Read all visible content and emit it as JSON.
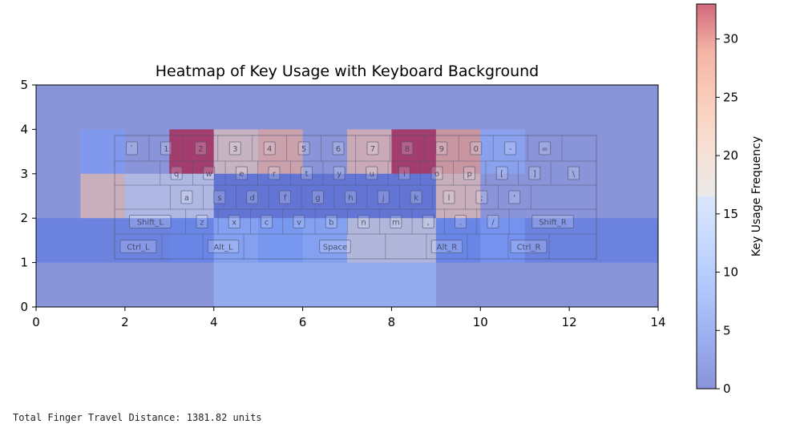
{
  "chart_data": {
    "type": "heatmap",
    "title": "Heatmap of Key Usage with Keyboard Background",
    "xlim": [
      0,
      14
    ],
    "ylim": [
      0,
      5
    ],
    "x_ticks": [
      0,
      2,
      4,
      6,
      8,
      10,
      12,
      14
    ],
    "y_ticks": [
      0,
      1,
      2,
      3,
      4,
      5
    ],
    "grid": false,
    "colormap": "coolwarm",
    "colorbar": {
      "label": "Key Usage Frequency",
      "min": 0,
      "max": 33,
      "ticks": [
        0,
        5,
        10,
        15,
        20,
        25,
        30
      ]
    },
    "background_value": 0,
    "cells": [
      {
        "x": [
          1,
          2
        ],
        "y": [
          3,
          4
        ],
        "value": 8
      },
      {
        "x": [
          3,
          4
        ],
        "y": [
          3,
          4
        ],
        "value": 33
      },
      {
        "x": [
          4,
          5
        ],
        "y": [
          3,
          4
        ],
        "value": 21
      },
      {
        "x": [
          5,
          6
        ],
        "y": [
          3,
          4
        ],
        "value": 25
      },
      {
        "x": [
          7,
          8
        ],
        "y": [
          3,
          4
        ],
        "value": 23
      },
      {
        "x": [
          8,
          9
        ],
        "y": [
          3,
          4
        ],
        "value": 33
      },
      {
        "x": [
          9,
          10
        ],
        "y": [
          3,
          4
        ],
        "value": 27
      },
      {
        "x": [
          10,
          11
        ],
        "y": [
          3,
          4
        ],
        "value": 10
      },
      {
        "x": [
          1,
          2
        ],
        "y": [
          2,
          3
        ],
        "value": 22
      },
      {
        "x": [
          2,
          3
        ],
        "y": [
          2,
          3
        ],
        "value": 15
      },
      {
        "x": [
          3,
          4
        ],
        "y": [
          2,
          3
        ],
        "value": 15
      },
      {
        "x": [
          4,
          5
        ],
        "y": [
          2,
          3
        ],
        "value": 2
      },
      {
        "x": [
          5,
          6
        ],
        "y": [
          2,
          3
        ],
        "value": 2
      },
      {
        "x": [
          6,
          7
        ],
        "y": [
          2,
          3
        ],
        "value": 2
      },
      {
        "x": [
          7,
          8
        ],
        "y": [
          2,
          3
        ],
        "value": 2
      },
      {
        "x": [
          8,
          9
        ],
        "y": [
          2,
          3
        ],
        "value": 2
      },
      {
        "x": [
          9,
          10
        ],
        "y": [
          2,
          3
        ],
        "value": 22
      },
      {
        "x": [
          0,
          14
        ],
        "y": [
          1,
          2
        ],
        "value": 4
      },
      {
        "x": [
          3,
          4
        ],
        "y": [
          1,
          2
        ],
        "value": 6
      },
      {
        "x": [
          4,
          5
        ],
        "y": [
          1,
          2
        ],
        "value": 11
      },
      {
        "x": [
          5,
          6
        ],
        "y": [
          1,
          2
        ],
        "value": 9
      },
      {
        "x": [
          6,
          7
        ],
        "y": [
          1,
          2
        ],
        "value": 11
      },
      {
        "x": [
          7,
          9
        ],
        "y": [
          1,
          2
        ],
        "value": 17
      },
      {
        "x": [
          9,
          10
        ],
        "y": [
          1,
          2
        ],
        "value": 6
      },
      {
        "x": [
          10,
          11
        ],
        "y": [
          1,
          2
        ],
        "value": 8
      },
      {
        "x": [
          4,
          9
        ],
        "y": [
          0,
          1
        ],
        "value": 12
      }
    ],
    "keyboard_rows": [
      [
        "`",
        "1",
        "2",
        "3",
        "4",
        "5",
        "6",
        "7",
        "8",
        "9",
        "0",
        "-",
        "="
      ],
      [
        "q",
        "w",
        "e",
        "r",
        "t",
        "y",
        "u",
        "i",
        "o",
        "p",
        "[",
        "]",
        "\\"
      ],
      [
        "a",
        "s",
        "d",
        "f",
        "g",
        "h",
        "j",
        "k",
        "l",
        ";",
        "'"
      ],
      [
        "Shift_L",
        "z",
        "x",
        "c",
        "v",
        "b",
        "n",
        "m",
        ",",
        ".",
        "/",
        "Shift_R"
      ],
      [
        "Ctrl_L",
        "Alt_L",
        "Space",
        "Alt_R",
        "Ctrl_R"
      ]
    ]
  },
  "output_text": "Total Finger Travel Distance: 1381.82 units"
}
